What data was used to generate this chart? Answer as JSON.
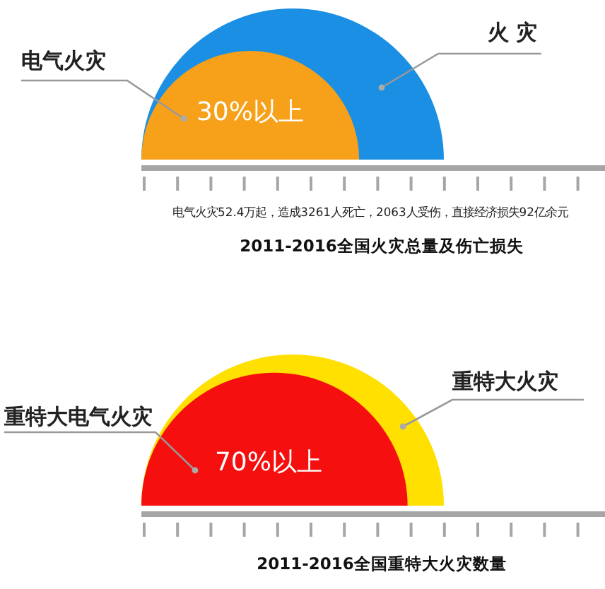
{
  "chart_data": [
    {
      "type": "other",
      "title": "2011-2016全国火灾总量及伤亡损失",
      "categories": [
        "火 灾",
        "电气火灾"
      ],
      "values": [
        null,
        30
      ],
      "value_labels": [
        null,
        "30%以上"
      ],
      "colors": [
        "#1a8fe3",
        "#f7a11a"
      ],
      "annotations": [
        "电气火灾52.4万起，造成3261人死亡，2063人受伤，直接经济损失92亿余元"
      ]
    },
    {
      "type": "other",
      "title": "2011-2016全国重特大火灾数量",
      "categories": [
        "重特大火灾",
        "重特大电气火灾"
      ],
      "values": [
        null,
        70
      ],
      "value_labels": [
        null,
        "70%以上"
      ],
      "colors": [
        "#ffe000",
        "#f50f0f"
      ]
    }
  ]
}
